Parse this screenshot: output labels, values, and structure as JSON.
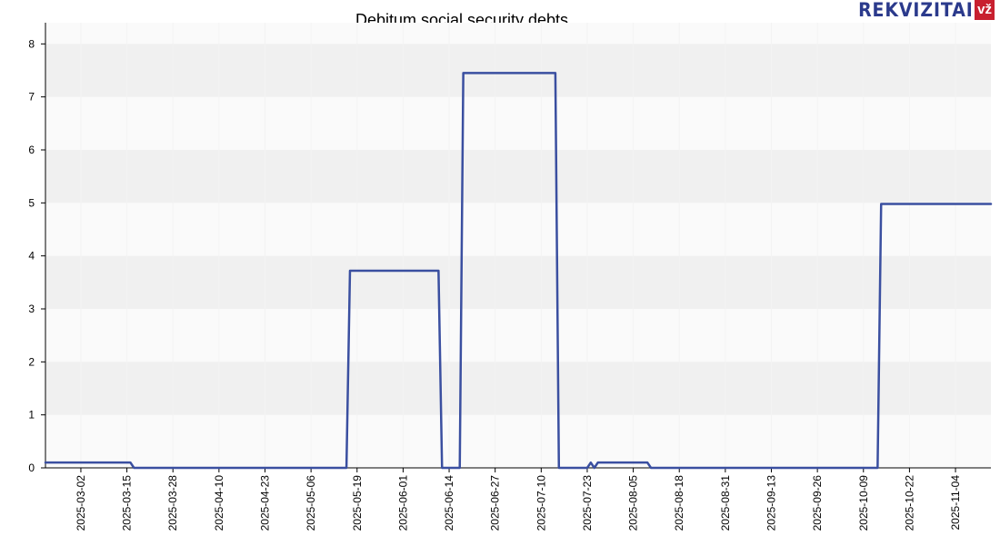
{
  "logo": {
    "text": "REKVIZITAI",
    "badge": "vž",
    "brand_color": "#2b3a8c",
    "badge_color": "#c8202f"
  },
  "chart_data": {
    "type": "line",
    "title": "Debitum social security debts",
    "xlabel": "",
    "ylabel": "",
    "x_start": "2025-02-20",
    "x_end": "2025-11-14",
    "ylim": [
      0,
      8.4
    ],
    "yticks": [
      0,
      1,
      2,
      3,
      4,
      5,
      6,
      7,
      8
    ],
    "xticks": [
      "2025-03-02",
      "2025-03-15",
      "2025-03-28",
      "2025-04-10",
      "2025-04-23",
      "2025-05-06",
      "2025-05-19",
      "2025-06-01",
      "2025-06-14",
      "2025-06-27",
      "2025-07-10",
      "2025-07-23",
      "2025-08-05",
      "2025-08-18",
      "2025-08-31",
      "2025-09-13",
      "2025-09-26",
      "2025-10-09",
      "2025-10-22",
      "2025-11-04"
    ],
    "grid": true,
    "line_color": "#3a4fa0",
    "series": [
      {
        "x": [
          "2025-02-20",
          "2025-03-16",
          "2025-03-17",
          "2025-05-16",
          "2025-05-17",
          "2025-06-11",
          "2025-06-12",
          "2025-06-17",
          "2025-06-18",
          "2025-07-14",
          "2025-07-15",
          "2025-07-23",
          "2025-07-24",
          "2025-07-25",
          "2025-07-26",
          "2025-07-27",
          "2025-08-09",
          "2025-08-10",
          "2025-10-13",
          "2025-10-14",
          "2025-11-14"
        ],
        "y": [
          0.1,
          0.1,
          0.0,
          0.0,
          3.72,
          3.72,
          0.0,
          0.0,
          7.45,
          7.45,
          0.0,
          0.0,
          0.1,
          0.0,
          0.1,
          0.1,
          0.1,
          0.0,
          0.0,
          4.98,
          4.98
        ]
      }
    ]
  }
}
